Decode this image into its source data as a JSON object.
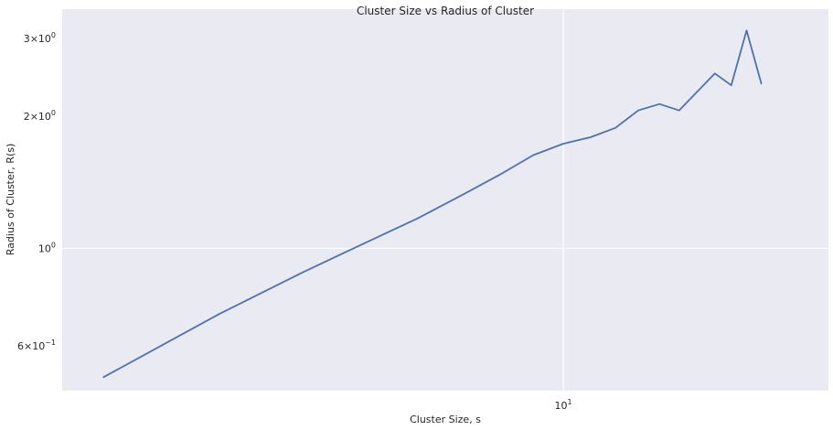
{
  "chart_data": {
    "type": "line",
    "title": "Cluster Size vs Radius of Cluster",
    "xlabel": "Cluster Size, s",
    "ylabel": "Radius of Cluster, R(s)",
    "xscale": "log",
    "yscale": "log",
    "xlim": [
      1.73,
      25.3
    ],
    "ylim": [
      0.475,
      3.5
    ],
    "grid": true,
    "legend": "none",
    "colors": {
      "background": "#eaeaf2",
      "grid": "#ffffff",
      "line": "#4c72b0"
    },
    "x_ticks": [
      {
        "value": 10,
        "base": "10",
        "exp": "1"
      }
    ],
    "y_ticks": [
      {
        "value": 0.6,
        "mantissa": "6",
        "sep": "×",
        "base": "10",
        "exp": "−1"
      },
      {
        "value": 1,
        "mantissa": "",
        "sep": "",
        "base": "10",
        "exp": "0"
      },
      {
        "value": 2,
        "mantissa": "2",
        "sep": "×",
        "base": "10",
        "exp": "0"
      },
      {
        "value": 3,
        "mantissa": "3",
        "sep": "×",
        "base": "10",
        "exp": "0"
      }
    ],
    "series": [
      {
        "x": [
          2,
          3,
          4,
          5,
          6,
          7,
          8,
          9,
          10,
          11,
          12,
          13,
          14,
          15,
          17,
          18,
          19,
          20
        ],
        "y": [
          0.51,
          0.71,
          0.88,
          1.03,
          1.17,
          1.32,
          1.47,
          1.63,
          1.73,
          1.79,
          1.88,
          2.06,
          2.13,
          2.06,
          2.5,
          2.35,
          3.13,
          2.37
        ]
      }
    ]
  }
}
